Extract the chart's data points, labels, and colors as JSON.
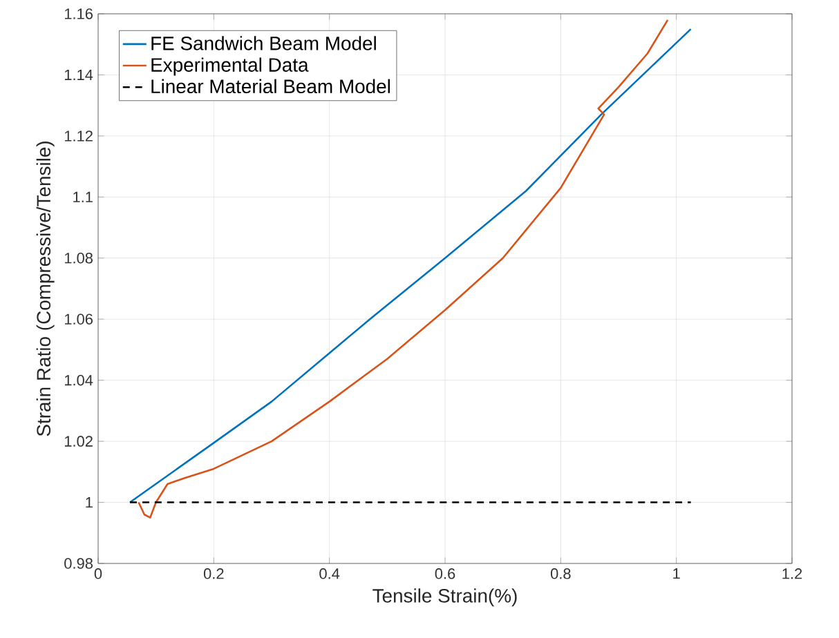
{
  "chart_data": {
    "type": "line",
    "xlabel": "Tensile Strain(%)",
    "ylabel": "Strain Ratio (Compressive/Tensile)",
    "xlim": [
      0,
      1.2
    ],
    "ylim": [
      0.98,
      1.16
    ],
    "xticks": [
      0,
      0.2,
      0.4,
      0.6,
      0.8,
      1,
      1.2
    ],
    "yticks": [
      0.98,
      1,
      1.02,
      1.04,
      1.06,
      1.08,
      1.1,
      1.12,
      1.14,
      1.16
    ],
    "grid": true,
    "legend": "top left",
    "series": [
      {
        "name": "FE Sandwich Beam Model",
        "color": "#0072bd",
        "line_style": "solid",
        "x": [
          0.055,
          0.2,
          0.3,
          0.47,
          0.6,
          0.74,
          0.87,
          1.025
        ],
        "values": [
          1.0,
          1.0195,
          1.033,
          1.06,
          1.08,
          1.102,
          1.127,
          1.155
        ]
      },
      {
        "name": "Experimental Data",
        "color": "#d95319",
        "line_style": "solid",
        "x": [
          0.07,
          0.08,
          0.09,
          0.1,
          0.12,
          0.15,
          0.2,
          0.3,
          0.4,
          0.5,
          0.6,
          0.7,
          0.8,
          0.875,
          0.865,
          0.88,
          0.9,
          0.95,
          0.985
        ],
        "values": [
          1.0,
          0.996,
          0.995,
          1.0,
          1.006,
          1.008,
          1.011,
          1.02,
          1.033,
          1.047,
          1.063,
          1.08,
          1.103,
          1.127,
          1.129,
          1.132,
          1.136,
          1.147,
          1.158
        ]
      },
      {
        "name": "Linear Material Beam Model",
        "color": "#000000",
        "line_style": "dashed",
        "x": [
          0.055,
          1.025
        ],
        "values": [
          1.0,
          1.0
        ]
      }
    ]
  }
}
